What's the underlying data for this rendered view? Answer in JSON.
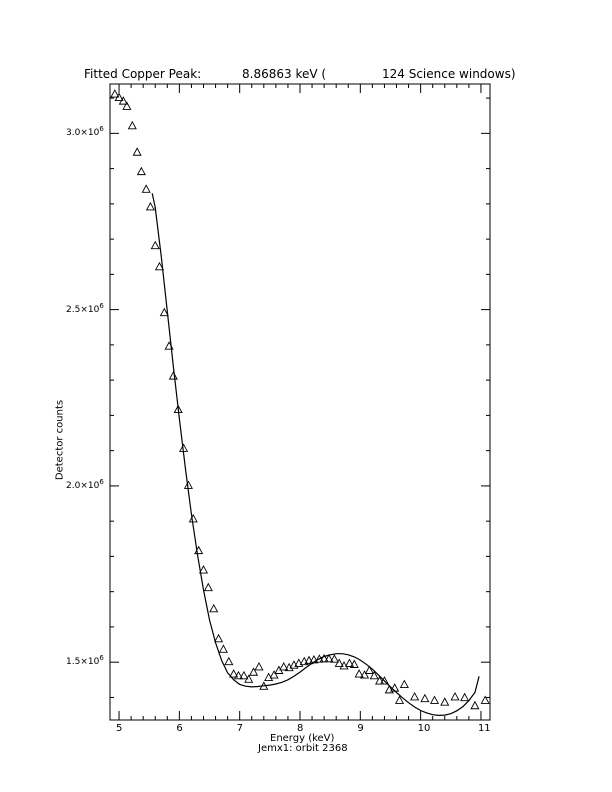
{
  "chart_data": {
    "type": "scatter",
    "title": "Fitted Copper Peak:",
    "title_value": "8.86863 keV (",
    "title_tail": "124 Science windows)",
    "xlabel": "Energy (keV)",
    "ylabel": "Detector counts",
    "subtitle": "Jemx1: orbit 2368",
    "xlim": [
      4.85,
      11.15
    ],
    "ylim": [
      1336000,
      3140000
    ],
    "x_ticks": [
      5,
      6,
      7,
      8,
      9,
      10,
      11
    ],
    "x_tick_labels": [
      "5",
      "6",
      "7",
      "8",
      "9",
      "10",
      "11"
    ],
    "y_ticks": [
      1500000,
      2000000,
      2500000,
      3000000
    ],
    "y_tick_labels": [
      {
        "mant": "1.5×10",
        "exp": "6"
      },
      {
        "mant": "2.0×10",
        "exp": "6"
      },
      {
        "mant": "2.5×10",
        "exp": "6"
      },
      {
        "mant": "3.0×10",
        "exp": "6"
      }
    ],
    "grid": false,
    "series": [
      {
        "marker": "triangle",
        "points": [
          [
            4.93,
            3110000
          ],
          [
            5.0,
            3100000
          ],
          [
            5.07,
            3090000
          ],
          [
            5.13,
            3075000
          ],
          [
            5.22,
            3020000
          ],
          [
            5.3,
            2945000
          ],
          [
            5.37,
            2890000
          ],
          [
            5.45,
            2840000
          ],
          [
            5.52,
            2790000
          ],
          [
            5.6,
            2680000
          ],
          [
            5.67,
            2620000
          ],
          [
            5.75,
            2490000
          ],
          [
            5.83,
            2395000
          ],
          [
            5.9,
            2310000
          ],
          [
            5.98,
            2215000
          ],
          [
            6.07,
            2105000
          ],
          [
            6.15,
            2000000
          ],
          [
            6.23,
            1905000
          ],
          [
            6.32,
            1815000
          ],
          [
            6.4,
            1760000
          ],
          [
            6.48,
            1710000
          ],
          [
            6.57,
            1650000
          ],
          [
            6.65,
            1565000
          ],
          [
            6.73,
            1535000
          ],
          [
            6.82,
            1500000
          ],
          [
            6.9,
            1465000
          ],
          [
            6.98,
            1460000
          ],
          [
            7.07,
            1460000
          ],
          [
            7.15,
            1450000
          ],
          [
            7.23,
            1470000
          ],
          [
            7.32,
            1485000
          ],
          [
            7.4,
            1430000
          ],
          [
            7.48,
            1455000
          ],
          [
            7.57,
            1462000
          ],
          [
            7.65,
            1475000
          ],
          [
            7.73,
            1485000
          ],
          [
            7.82,
            1483000
          ],
          [
            7.9,
            1490000
          ],
          [
            7.98,
            1495000
          ],
          [
            8.07,
            1500000
          ],
          [
            8.15,
            1503000
          ],
          [
            8.23,
            1505000
          ],
          [
            8.32,
            1507000
          ],
          [
            8.4,
            1508000
          ],
          [
            8.48,
            1508000
          ],
          [
            8.57,
            1507000
          ],
          [
            8.65,
            1495000
          ],
          [
            8.73,
            1488000
          ],
          [
            8.82,
            1495000
          ],
          [
            8.9,
            1492000
          ],
          [
            8.98,
            1465000
          ],
          [
            9.07,
            1462000
          ],
          [
            9.15,
            1475000
          ],
          [
            9.23,
            1460000
          ],
          [
            9.32,
            1445000
          ],
          [
            9.4,
            1445000
          ],
          [
            9.48,
            1420000
          ],
          [
            9.57,
            1425000
          ],
          [
            9.65,
            1390000
          ],
          [
            9.73,
            1435000
          ],
          [
            9.9,
            1400000
          ],
          [
            10.07,
            1395000
          ],
          [
            10.23,
            1390000
          ],
          [
            10.4,
            1385000
          ],
          [
            10.57,
            1400000
          ],
          [
            10.73,
            1398000
          ],
          [
            10.9,
            1375000
          ],
          [
            11.07,
            1390000
          ]
        ]
      },
      {
        "marker": "line",
        "points": [
          [
            5.55,
            2830000
          ],
          [
            5.6,
            2790000
          ],
          [
            5.7,
            2650000
          ],
          [
            5.8,
            2495000
          ],
          [
            5.9,
            2340000
          ],
          [
            6.0,
            2190000
          ],
          [
            6.1,
            2050000
          ],
          [
            6.2,
            1920000
          ],
          [
            6.3,
            1805000
          ],
          [
            6.4,
            1705000
          ],
          [
            6.5,
            1620000
          ],
          [
            6.6,
            1555000
          ],
          [
            6.7,
            1505000
          ],
          [
            6.8,
            1470000
          ],
          [
            6.9,
            1450000
          ],
          [
            7.0,
            1437000
          ],
          [
            7.1,
            1432000
          ],
          [
            7.2,
            1430000
          ],
          [
            7.3,
            1431000
          ],
          [
            7.4,
            1433000
          ],
          [
            7.5,
            1435000
          ],
          [
            7.6,
            1438000
          ],
          [
            7.7,
            1443000
          ],
          [
            7.8,
            1450000
          ],
          [
            7.9,
            1460000
          ],
          [
            8.0,
            1472000
          ],
          [
            8.1,
            1485000
          ],
          [
            8.2,
            1497000
          ],
          [
            8.3,
            1508000
          ],
          [
            8.4,
            1516000
          ],
          [
            8.5,
            1521000
          ],
          [
            8.6,
            1524000
          ],
          [
            8.7,
            1524000
          ],
          [
            8.8,
            1521000
          ],
          [
            8.9,
            1515000
          ],
          [
            9.0,
            1506000
          ],
          [
            9.1,
            1494000
          ],
          [
            9.2,
            1480000
          ],
          [
            9.3,
            1464000
          ],
          [
            9.4,
            1447000
          ],
          [
            9.5,
            1430000
          ],
          [
            9.6,
            1414000
          ],
          [
            9.7,
            1399000
          ],
          [
            9.8,
            1385000
          ],
          [
            9.9,
            1373000
          ],
          [
            10.0,
            1363000
          ],
          [
            10.1,
            1356000
          ],
          [
            10.2,
            1351000
          ],
          [
            10.3,
            1349000
          ],
          [
            10.4,
            1350000
          ],
          [
            10.5,
            1354000
          ],
          [
            10.6,
            1362000
          ],
          [
            10.7,
            1374000
          ],
          [
            10.8,
            1391000
          ],
          [
            10.9,
            1414000
          ],
          [
            10.97,
            1460000
          ]
        ]
      }
    ]
  }
}
